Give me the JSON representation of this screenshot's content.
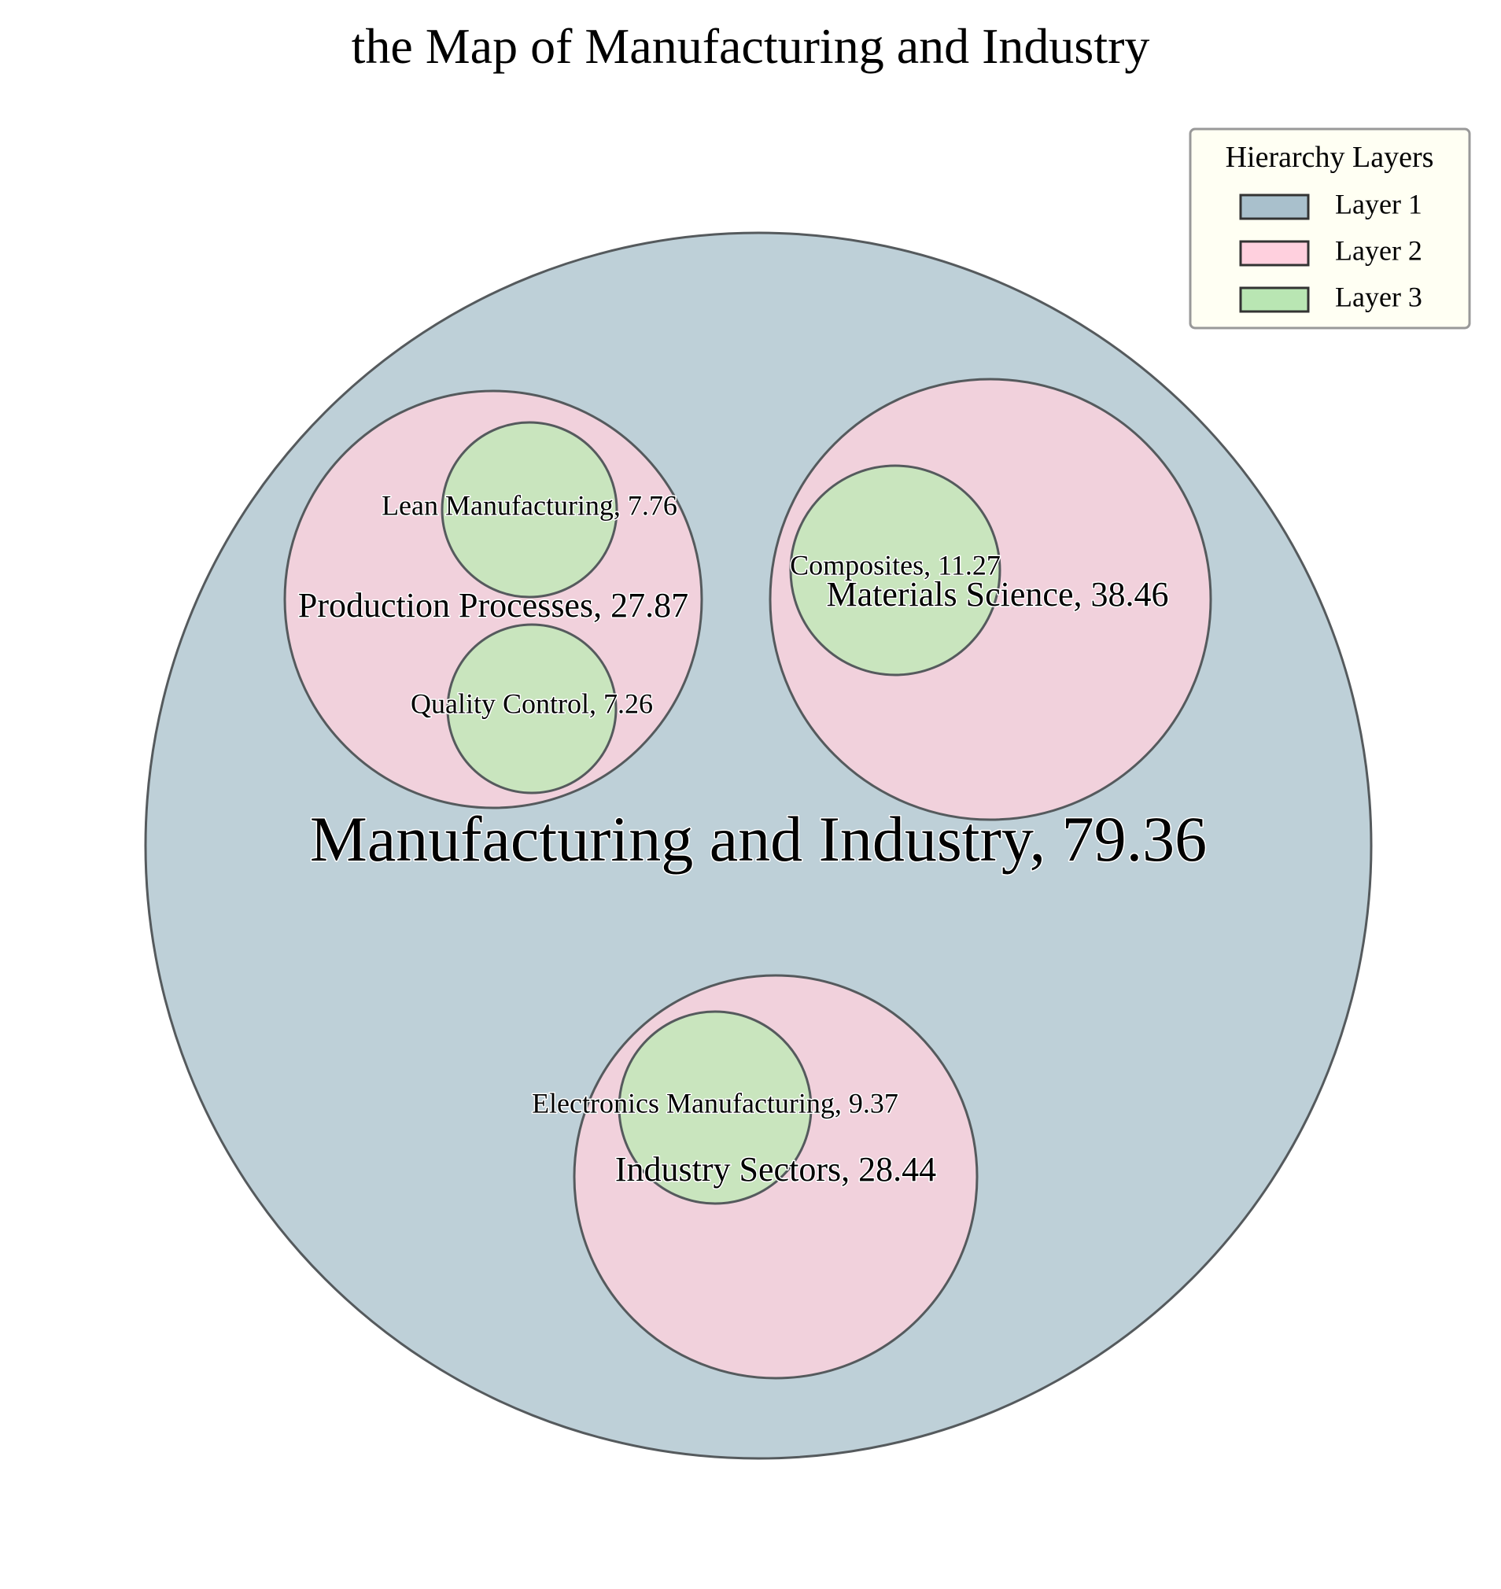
{
  "chart_data": {
    "type": "circle-packing",
    "title": "the Map of Manufacturing and Industry",
    "legend": {
      "title": "Hierarchy Layers",
      "placement": "top-right",
      "entries": [
        {
          "label": "Layer 1",
          "color": "#a9c0cc"
        },
        {
          "label": "Layer 2",
          "color": "#ffd0de"
        },
        {
          "label": "Layer 3",
          "color": "#b9e6b3"
        }
      ]
    },
    "layer_colors": {
      "1": "#bed0d8",
      "2": "#f1d1dc",
      "3": "#c9e5be"
    },
    "nodes": [
      {
        "id": "root",
        "name": "Manufacturing and Industry",
        "value": 79.36,
        "layer": 1,
        "parent": null
      },
      {
        "id": "prod",
        "name": "Production Processes",
        "value": 27.87,
        "layer": 2,
        "parent": "root"
      },
      {
        "id": "mat",
        "name": "Materials Science",
        "value": 38.46,
        "layer": 2,
        "parent": "root"
      },
      {
        "id": "ind",
        "name": "Industry Sectors",
        "value": 28.44,
        "layer": 2,
        "parent": "root"
      },
      {
        "id": "lean",
        "name": "Lean Manufacturing",
        "value": 7.76,
        "layer": 3,
        "parent": "prod"
      },
      {
        "id": "qc",
        "name": "Quality Control",
        "value": 7.26,
        "layer": 3,
        "parent": "prod"
      },
      {
        "id": "comp",
        "name": "Composites",
        "value": 11.27,
        "layer": 3,
        "parent": "mat"
      },
      {
        "id": "elec",
        "name": "Electronics Manufacturing",
        "value": 9.37,
        "layer": 3,
        "parent": "ind"
      }
    ]
  }
}
